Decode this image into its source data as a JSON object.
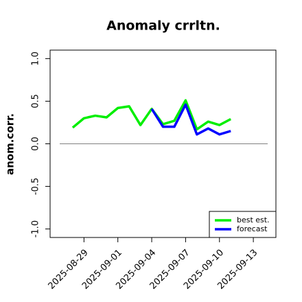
{
  "chart_data": {
    "type": "line",
    "title": "Anomaly crrltn.",
    "y_label": "anom.corr.",
    "x": [
      "2025-08-28",
      "2025-08-29",
      "2025-08-30",
      "2025-08-31",
      "2025-09-01",
      "2025-09-02",
      "2025-09-03",
      "2025-09-04",
      "2025-09-05",
      "2025-09-06",
      "2025-09-07",
      "2025-09-08",
      "2025-09-09",
      "2025-09-10",
      "2025-09-11"
    ],
    "series": [
      {
        "name": "best est.",
        "color": "#00ee00",
        "values": [
          0.19,
          0.3,
          0.33,
          0.31,
          0.42,
          0.44,
          0.22,
          0.41,
          0.23,
          0.27,
          0.51,
          0.17,
          0.26,
          0.22,
          0.29
        ]
      },
      {
        "name": "forecast",
        "color": "#0000ff",
        "values": [
          null,
          null,
          null,
          null,
          null,
          null,
          null,
          0.41,
          0.2,
          0.2,
          0.46,
          0.11,
          0.18,
          0.11,
          0.15
        ]
      }
    ],
    "xlim": [
      "2025-08-26",
      "2025-09-15"
    ],
    "xticks": [
      "2025-08-29",
      "2025-09-01",
      "2025-09-04",
      "2025-09-07",
      "2025-09-10",
      "2025-09-13"
    ],
    "xtick_colors": [
      "#000000",
      "#000000",
      "#228b22",
      "#000000",
      "#000000",
      "#000000"
    ],
    "ylim": [
      -1.1,
      1.1
    ],
    "yticks": [
      {
        "value": -1,
        "label": "-1.0"
      },
      {
        "value": -0.5,
        "label": "-0.5"
      },
      {
        "value": 0,
        "label": "0.0"
      },
      {
        "value": 0.5,
        "label": "0.5"
      },
      {
        "value": 1,
        "label": "1.0"
      }
    ],
    "hline": 0,
    "hline_color": "#808080",
    "legend": "bottomright"
  }
}
